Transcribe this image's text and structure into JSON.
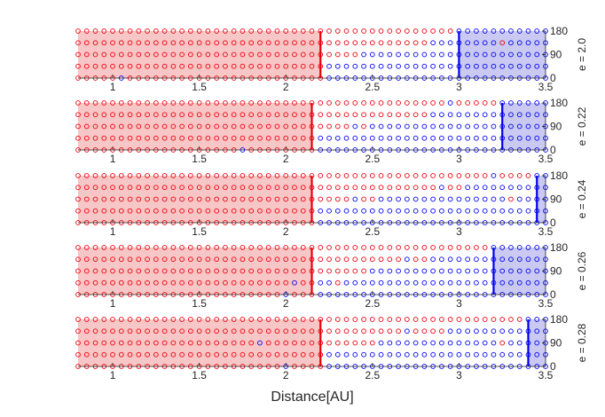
{
  "chart_data": {
    "type": "scatter",
    "xlabel": "Distance[AU]",
    "xlim": [
      0.8,
      3.5
    ],
    "ylim": [
      0,
      180
    ],
    "x_ticks": [
      1,
      1.5,
      2,
      2.5,
      3,
      3.5
    ],
    "x_tick_labels": [
      "1",
      "1.5",
      "2",
      "2.5",
      "3",
      "3.5"
    ],
    "y_ticks": [
      0,
      90,
      180
    ],
    "y_tick_labels": [
      "0",
      "90",
      "180"
    ],
    "grid": "x-step 0.05 AU, y rows at 0, 45, 90, 135, 180 degrees",
    "colors": {
      "red": "#e8000b",
      "blue": "#0000ee",
      "red_fill": "#f7c6c6",
      "blue_fill": "#c9c9f2"
    },
    "panels": [
      {
        "label": "e = 2.0",
        "red_boundary": 2.2,
        "blue_boundary": 3.0,
        "rows": [
          {
            "y": 180,
            "blue_from": 3.0
          },
          {
            "y": 135,
            "blue_from": 2.85
          },
          {
            "y": 90,
            "blue_from": 2.45
          },
          {
            "y": 45,
            "blue_from": 2.25
          },
          {
            "y": 0,
            "blue_from": 2.25
          }
        ],
        "stray_blue": [
          {
            "x": 1.05,
            "y": 0
          }
        ],
        "stray_red": [
          {
            "x": 3.25,
            "y": 135
          }
        ]
      },
      {
        "label": "e = 0.22",
        "red_boundary": 2.15,
        "blue_boundary": 3.25,
        "rows": [
          {
            "y": 180,
            "blue_from": 3.25
          },
          {
            "y": 135,
            "blue_from": 2.85
          },
          {
            "y": 90,
            "blue_from": 2.5
          },
          {
            "y": 45,
            "blue_from": 2.2
          },
          {
            "y": 0,
            "blue_from": 2.2
          }
        ],
        "stray_blue": [
          {
            "x": 1.75,
            "y": 0
          },
          {
            "x": 2.95,
            "y": 180
          },
          {
            "x": 3.0,
            "y": 135
          },
          {
            "x": 2.4,
            "y": 90
          }
        ],
        "stray_red": [
          {
            "x": 3.05,
            "y": 180
          }
        ]
      },
      {
        "label": "e = 0.24",
        "red_boundary": 2.15,
        "blue_boundary": 3.45,
        "rows": [
          {
            "y": 180,
            "blue_from": 3.45
          },
          {
            "y": 135,
            "blue_from": 3.05
          },
          {
            "y": 90,
            "blue_from": 2.55
          },
          {
            "y": 45,
            "blue_from": 2.2
          },
          {
            "y": 0,
            "blue_from": 2.2
          }
        ],
        "stray_blue": [
          {
            "x": 3.2,
            "y": 180
          },
          {
            "x": 2.9,
            "y": 135
          },
          {
            "x": 2.4,
            "y": 90
          }
        ],
        "stray_red": [
          {
            "x": 3.3,
            "y": 90
          }
        ]
      },
      {
        "label": "e = 0.26",
        "red_boundary": 2.15,
        "blue_boundary": 3.2,
        "rows": [
          {
            "y": 180,
            "blue_from": 3.2
          },
          {
            "y": 135,
            "blue_from": 2.85
          },
          {
            "y": 90,
            "blue_from": 2.5
          },
          {
            "y": 45,
            "blue_from": 2.2
          },
          {
            "y": 0,
            "blue_from": 2.2
          }
        ],
        "stray_blue": [
          {
            "x": 2.05,
            "y": 45
          },
          {
            "x": 2.0,
            "y": 0
          },
          {
            "x": 2.7,
            "y": 135
          }
        ],
        "stray_red": [
          {
            "x": 2.3,
            "y": 45
          }
        ]
      },
      {
        "label": "e = 0.28",
        "red_boundary": 2.2,
        "blue_boundary": 3.4,
        "rows": [
          {
            "y": 180,
            "blue_from": 3.4
          },
          {
            "y": 135,
            "blue_from": 2.95
          },
          {
            "y": 90,
            "blue_from": 2.55
          },
          {
            "y": 45,
            "blue_from": 2.25
          },
          {
            "y": 0,
            "blue_from": 2.25
          }
        ],
        "stray_blue": [
          {
            "x": 1.85,
            "y": 90
          },
          {
            "x": 2.0,
            "y": 0
          },
          {
            "x": 2.7,
            "y": 135
          }
        ],
        "stray_red": [
          {
            "x": 3.25,
            "y": 90
          }
        ]
      }
    ]
  }
}
